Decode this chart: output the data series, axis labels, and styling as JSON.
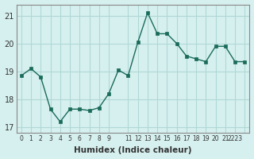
{
  "x": [
    0,
    1,
    2,
    3,
    4,
    5,
    6,
    7,
    8,
    9,
    10,
    11,
    12,
    13,
    14,
    15,
    16,
    17,
    18,
    19,
    20,
    21,
    22,
    23
  ],
  "y": [
    18.85,
    19.1,
    18.8,
    17.65,
    17.2,
    17.65,
    17.65,
    17.6,
    17.7,
    18.2,
    19.05,
    18.85,
    20.05,
    21.1,
    20.35,
    20.35,
    20.0,
    19.55,
    19.45,
    19.35,
    19.9,
    19.9,
    19.35,
    19.35
  ],
  "line_color": "#1a6b5a",
  "marker_color": "#1a6b5a",
  "bg_color": "#d6f0ef",
  "grid_color": "#b0d8d5",
  "axis_color": "#888888",
  "xlabel": "Humidex (Indice chaleur)",
  "ylim": [
    16.8,
    21.4
  ],
  "yticks": [
    17,
    18,
    19,
    20,
    21
  ],
  "xtick_positions": [
    0,
    1,
    2,
    3,
    4,
    5,
    6,
    7,
    8,
    9,
    11,
    12,
    13,
    14,
    15,
    16,
    17,
    18,
    19,
    20,
    21,
    22,
    23
  ],
  "xtick_labels": [
    "0",
    "1",
    "2",
    "3",
    "4",
    "5",
    "6",
    "7",
    "8",
    "9",
    "11",
    "12",
    "13",
    "14",
    "15",
    "16",
    "17",
    "18",
    "19",
    "20",
    "21",
    "2223",
    ""
  ],
  "marker_size": 3
}
